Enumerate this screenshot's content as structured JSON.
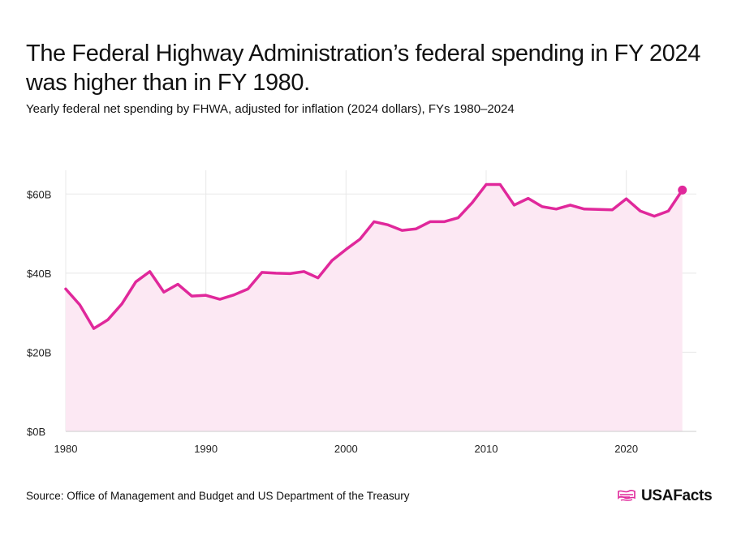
{
  "header": {
    "title": "The Federal Highway Administration’s federal spending in FY 2024 was higher than in FY 1980.",
    "subtitle": "Yearly federal net spending by FHWA, adjusted for inflation (2024 dollars), FYs 1980–2024"
  },
  "footer": {
    "source": "Source: Office of Management and Budget and US Department of the Treasury",
    "brand": "USAFacts"
  },
  "colors": {
    "line": "#e0289b",
    "area": "#fce8f3",
    "grid": "#e8e8e8"
  },
  "chart_data": {
    "type": "area",
    "title": "The Federal Highway Administration’s federal spending in FY 2024 was higher than in FY 1980.",
    "subtitle": "Yearly federal net spending by FHWA, adjusted for inflation (2024 dollars), FYs 1980–2024",
    "xlabel": "",
    "ylabel": "",
    "xlim": [
      1980,
      2025
    ],
    "ylim": [
      0,
      66
    ],
    "x_ticks": [
      1980,
      1990,
      2000,
      2010,
      2020
    ],
    "x_tick_labels": [
      "1980",
      "1990",
      "2000",
      "2010",
      "2020"
    ],
    "y_ticks": [
      0,
      20,
      40,
      60
    ],
    "y_tick_labels": [
      "$0B",
      "$20B",
      "$40B",
      "$60B"
    ],
    "grid": true,
    "legend": "none",
    "x": [
      1980,
      1981,
      1982,
      1983,
      1984,
      1985,
      1986,
      1987,
      1988,
      1989,
      1990,
      1991,
      1992,
      1993,
      1994,
      1995,
      1996,
      1997,
      1998,
      1999,
      2000,
      2001,
      2002,
      2003,
      2004,
      2005,
      2006,
      2007,
      2008,
      2009,
      2010,
      2011,
      2012,
      2013,
      2014,
      2015,
      2016,
      2017,
      2018,
      2019,
      2020,
      2021,
      2022,
      2023,
      2024
    ],
    "series": [
      {
        "values": [
          36.0,
          32.0,
          26.0,
          28.2,
          32.2,
          37.8,
          40.4,
          35.2,
          37.2,
          34.2,
          34.4,
          33.4,
          34.5,
          36.0,
          40.2,
          40.0,
          39.9,
          40.4,
          38.8,
          43.2,
          46.0,
          48.6,
          53.0,
          52.2,
          50.8,
          51.2,
          53.0,
          53.0,
          54.0,
          57.8,
          62.4,
          62.4,
          57.2,
          58.9,
          56.8,
          56.2,
          57.2,
          56.2,
          56.1,
          56.0,
          58.8,
          55.7,
          54.4,
          55.7,
          61.0
        ]
      }
    ]
  }
}
